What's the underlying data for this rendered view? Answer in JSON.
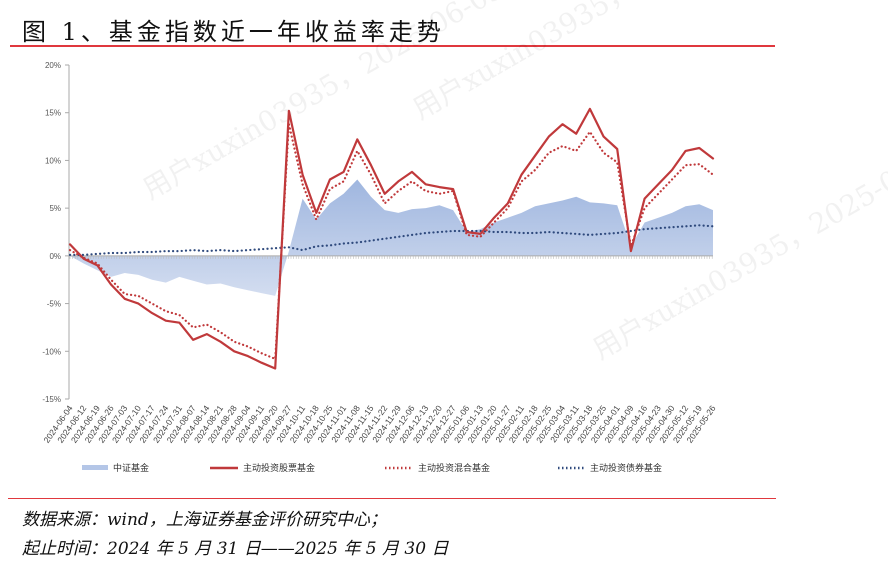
{
  "header": {
    "title": "图 1、基金指数近一年收益率走势"
  },
  "footer": {
    "source": "数据来源：wind，上海证券基金评价研究中心；",
    "period": "起止时间：2024 年 5 月 31 日——2025 年 5 月 30 日"
  },
  "watermark": {
    "texts": [
      "用户xuxin03935，2025-06-03",
      "用户xuxin03935，2025-06-03",
      "用户xuxin03935，2025-06-03"
    ]
  },
  "colors": {
    "csi_fill": "#b4c6e7",
    "equity": "#c0393b",
    "hybrid": "#c0393b",
    "bond": "#2f4a7d",
    "axis": "#aaaaaa",
    "rule": "#e0383e"
  },
  "chart_data": {
    "type": "line",
    "title": "基金指数近一年收益率走势",
    "xlabel": "",
    "ylabel": "",
    "ylim": [
      -0.15,
      0.2
    ],
    "yticks": [
      "20%",
      "15%",
      "10%",
      "5%",
      "0%",
      "-5%",
      "-10%",
      "-15%"
    ],
    "ytick_values": [
      20,
      15,
      10,
      5,
      0,
      -5,
      -10,
      -15
    ],
    "grid": false,
    "legend_position": "bottom",
    "x": [
      "2024-06-04",
      "2024-06-12",
      "2024-06-19",
      "2024-06-26",
      "2024-07-03",
      "2024-07-10",
      "2024-07-17",
      "2024-07-24",
      "2024-07-31",
      "2024-08-07",
      "2024-08-14",
      "2024-08-21",
      "2024-08-28",
      "2024-09-04",
      "2024-09-11",
      "2024-09-20",
      "2024-09-27",
      "2024-10-11",
      "2024-10-18",
      "2024-10-25",
      "2024-11-01",
      "2024-11-08",
      "2024-11-15",
      "2024-11-22",
      "2024-11-29",
      "2024-12-06",
      "2024-12-13",
      "2024-12-20",
      "2024-12-27",
      "2025-01-06",
      "2025-01-13",
      "2025-01-20",
      "2025-01-27",
      "2025-02-11",
      "2025-02-18",
      "2025-02-25",
      "2025-03-04",
      "2025-03-11",
      "2025-03-18",
      "2025-03-25",
      "2025-04-01",
      "2025-04-09",
      "2025-04-16",
      "2025-04-23",
      "2025-04-30",
      "2025-05-12",
      "2025-05-19",
      "2025-05-26"
    ],
    "series": [
      {
        "name": "中证基金",
        "style": "area",
        "values": [
          0.0,
          -0.8,
          -1.5,
          -2.2,
          -1.8,
          -2.0,
          -2.5,
          -2.8,
          -2.2,
          -2.6,
          -3.0,
          -2.9,
          -3.3,
          -3.6,
          -3.9,
          -4.2,
          0.5,
          6.0,
          3.8,
          5.5,
          6.5,
          8.0,
          6.2,
          4.8,
          4.5,
          4.9,
          5.0,
          5.3,
          4.8,
          2.5,
          2.8,
          3.5,
          4.0,
          4.5,
          5.2,
          5.5,
          5.8,
          6.2,
          5.6,
          5.5,
          5.3,
          1.0,
          3.5,
          4.0,
          4.5,
          5.2,
          5.4,
          4.8
        ]
      },
      {
        "name": "主动投资股票基金",
        "style": "solid",
        "values": [
          1.2,
          -0.3,
          -1.0,
          -3.0,
          -4.5,
          -5.0,
          -6.0,
          -6.8,
          -7.0,
          -8.8,
          -8.2,
          -9.0,
          -10.0,
          -10.5,
          -11.2,
          -11.8,
          15.2,
          8.5,
          4.5,
          8.0,
          8.8,
          12.2,
          9.5,
          6.5,
          7.8,
          8.8,
          7.5,
          7.2,
          7.0,
          2.5,
          2.3,
          4.0,
          5.5,
          8.5,
          10.5,
          12.5,
          13.8,
          12.8,
          15.4,
          12.5,
          11.2,
          0.5,
          6.0,
          7.5,
          9.0,
          11.0,
          11.3,
          10.2
        ]
      },
      {
        "name": "主动投资混合基金",
        "style": "dotted",
        "values": [
          0.6,
          -0.2,
          -0.8,
          -2.5,
          -4.0,
          -4.2,
          -5.0,
          -5.8,
          -6.2,
          -7.5,
          -7.2,
          -8.0,
          -9.0,
          -9.5,
          -10.2,
          -10.8,
          13.8,
          7.5,
          3.8,
          7.0,
          7.8,
          11.0,
          8.5,
          5.5,
          6.8,
          7.8,
          6.8,
          6.5,
          6.8,
          2.2,
          2.0,
          3.5,
          5.0,
          7.8,
          9.0,
          10.8,
          11.5,
          11.0,
          13.0,
          10.8,
          9.8,
          1.0,
          5.0,
          6.5,
          8.0,
          9.5,
          9.6,
          8.5
        ]
      },
      {
        "name": "主动投资债券基金",
        "style": "dotted",
        "values": [
          0.1,
          0.1,
          0.2,
          0.3,
          0.3,
          0.4,
          0.4,
          0.5,
          0.5,
          0.6,
          0.5,
          0.6,
          0.5,
          0.6,
          0.7,
          0.8,
          0.9,
          0.6,
          1.0,
          1.1,
          1.3,
          1.4,
          1.6,
          1.8,
          2.0,
          2.2,
          2.4,
          2.5,
          2.6,
          2.6,
          2.6,
          2.5,
          2.5,
          2.4,
          2.4,
          2.5,
          2.4,
          2.3,
          2.2,
          2.3,
          2.4,
          2.6,
          2.8,
          2.9,
          3.0,
          3.1,
          3.2,
          3.1
        ]
      }
    ]
  },
  "legend": {
    "items": [
      {
        "label": "中证基金",
        "style": "area"
      },
      {
        "label": "主动投资股票基金",
        "style": "solid"
      },
      {
        "label": "主动投资混合基金",
        "style": "dotted-red"
      },
      {
        "label": "主动投资债券基金",
        "style": "dotted-blue"
      }
    ]
  }
}
